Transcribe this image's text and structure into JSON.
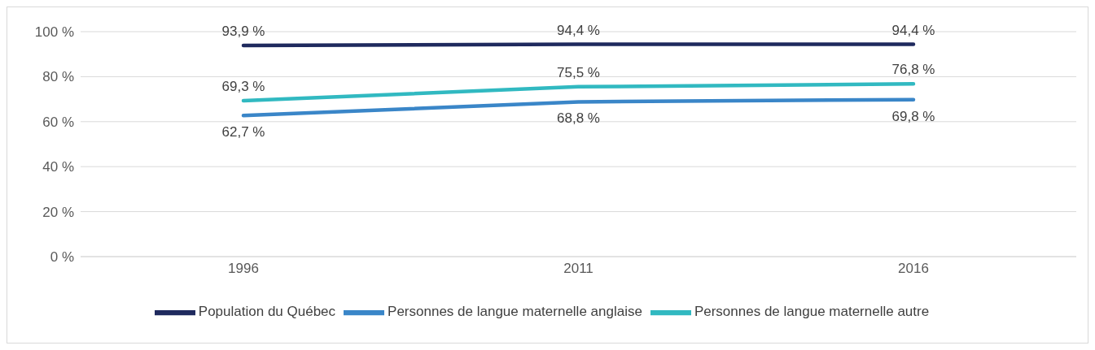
{
  "chart_data": {
    "type": "line",
    "categories": [
      "1996",
      "2011",
      "2016"
    ],
    "series": [
      {
        "name": "Population du Québec",
        "color": "#1f2a5e",
        "values": [
          93.9,
          94.4,
          94.4
        ],
        "value_labels": [
          "93,9 %",
          "94,4 %",
          "94,4 %"
        ]
      },
      {
        "name": "Personnes de langue maternelle anglaise",
        "color": "#3a86c8",
        "values": [
          62.7,
          68.8,
          69.8
        ],
        "value_labels": [
          "62,7 %",
          "68,8 %",
          "69,8 %"
        ]
      },
      {
        "name": "Personnes de langue maternelle autre",
        "color": "#31b9c1",
        "values": [
          69.3,
          75.5,
          76.8
        ],
        "value_labels": [
          "69,3 %",
          "75,5 %",
          "76,8 %"
        ]
      }
    ],
    "ylim": [
      0,
      100
    ],
    "yticks": [
      {
        "value": 0,
        "label": "0 %"
      },
      {
        "value": 20,
        "label": "20 %"
      },
      {
        "value": 40,
        "label": "40 %"
      },
      {
        "value": 60,
        "label": "60 %"
      },
      {
        "value": 80,
        "label": "80 %"
      },
      {
        "value": 100,
        "label": "100 %"
      }
    ],
    "grid": "y",
    "legend": "bottom",
    "marker": "none",
    "line_style": "solid"
  }
}
